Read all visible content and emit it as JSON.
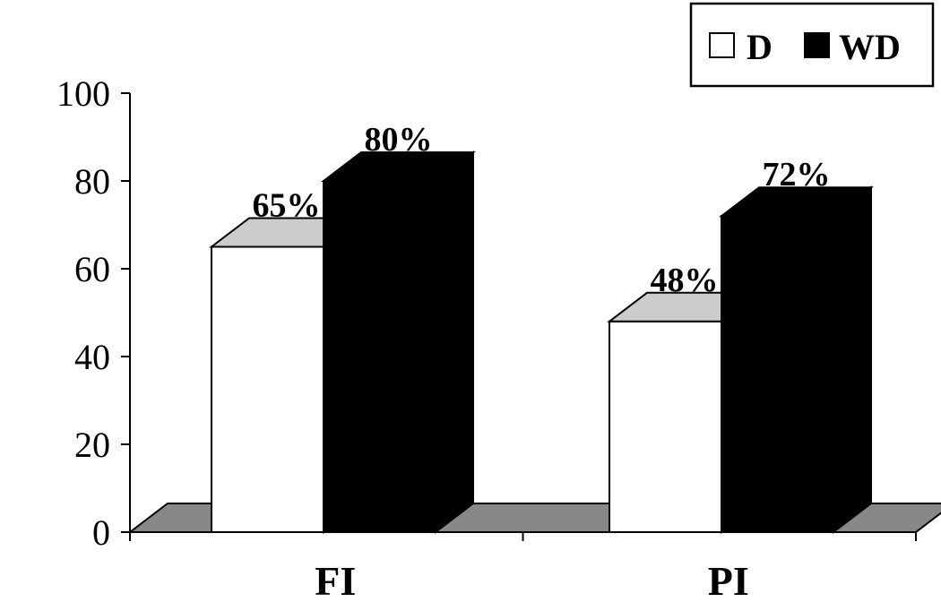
{
  "chart_data": {
    "type": "bar",
    "categories": [
      "FI",
      "PI"
    ],
    "series": [
      {
        "name": "D",
        "values": [
          65,
          48
        ],
        "labels": [
          "65%",
          "48%"
        ],
        "color": "#ffffff"
      },
      {
        "name": "WD",
        "values": [
          80,
          72
        ],
        "labels": [
          "80%",
          "72%"
        ],
        "color": "#000000"
      }
    ],
    "yticks": [
      "0",
      "20",
      "40",
      "60",
      "80",
      "100"
    ],
    "ylim": [
      0,
      100
    ],
    "xlabel": "",
    "ylabel": "",
    "title": "",
    "legend_position": "top-right",
    "three_d": true,
    "colors": {
      "floor": "#888888",
      "bar_top_light": "#cccccc",
      "outline": "#000000"
    }
  }
}
